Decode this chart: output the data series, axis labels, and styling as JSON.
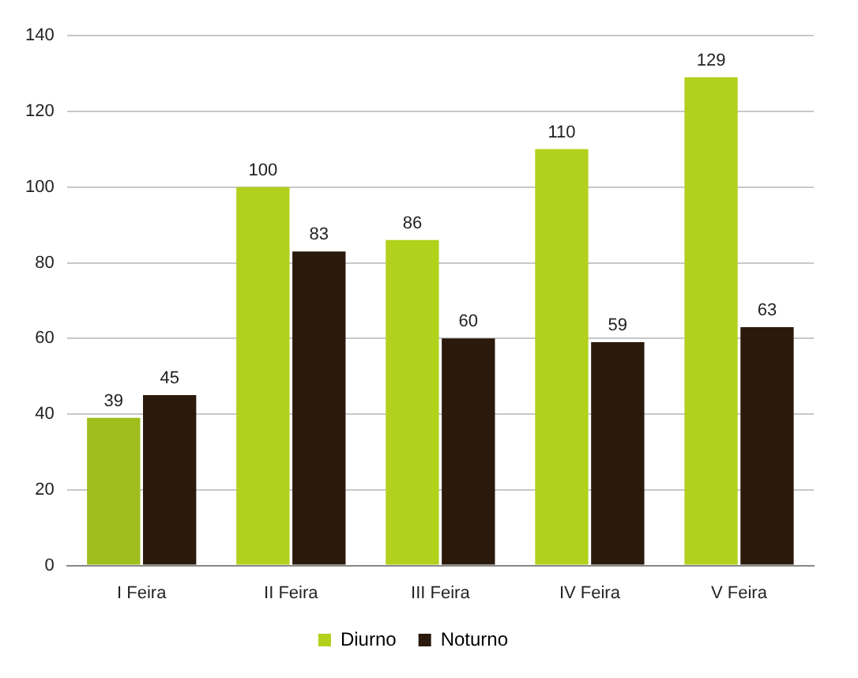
{
  "chart_data": {
    "type": "bar",
    "categories": [
      "I Feira",
      "II Feira",
      "III Feira",
      "IV Feira",
      "V Feira"
    ],
    "series": [
      {
        "name": "Diurno",
        "color": "#b2d11c",
        "colors": [
          "#9fbd1c",
          "#b2d11c",
          "#b2d11c",
          "#b2d11c",
          "#b2d11c"
        ],
        "values": [
          39,
          100,
          86,
          110,
          129
        ]
      },
      {
        "name": "Noturno",
        "color": "#2b1a0c",
        "values": [
          45,
          83,
          60,
          59,
          63
        ]
      }
    ],
    "ylim": [
      0,
      140
    ],
    "yticks": [
      0,
      20,
      40,
      60,
      80,
      100,
      120,
      140
    ],
    "grid": "y",
    "legend": "bottom",
    "data_labels": true
  }
}
